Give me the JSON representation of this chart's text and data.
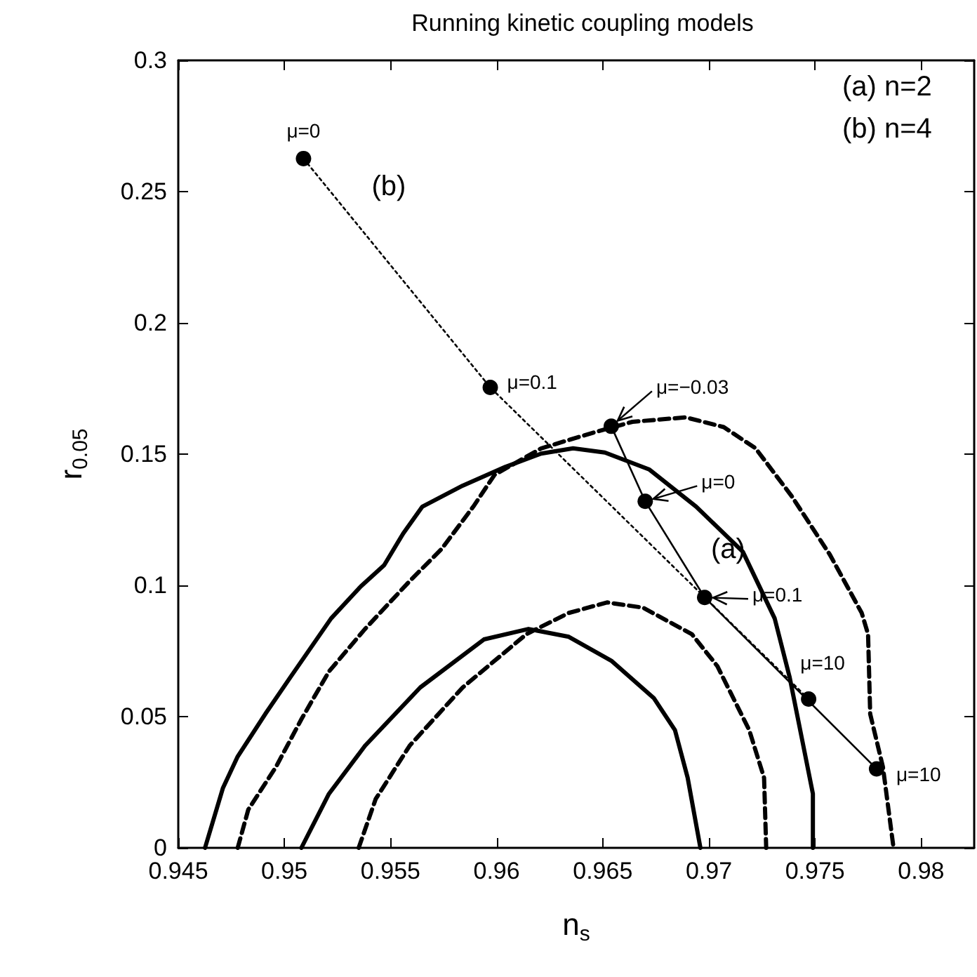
{
  "chart_data": {
    "type": "line",
    "title": "Running kinetic coupling models",
    "xlabel": "n$_{s}$",
    "ylabel": "r$_{0.05}$",
    "xlim": [
      0.945,
      0.9825
    ],
    "xticks": [
      0.945,
      0.95,
      0.955,
      0.96,
      0.965,
      0.97,
      0.975,
      0.98
    ],
    "ylim": [
      0,
      0.3
    ],
    "yticks": [
      0,
      0.05,
      0.1,
      0.15,
      0.2,
      0.25,
      0.3
    ],
    "grid": false,
    "legend": false,
    "series": [
      {
        "color": "#000000",
        "line_style": "solid",
        "marker": "none",
        "x": [
          0.94626,
          0.9471,
          0.9478,
          0.9491,
          0.9503,
          0.9522,
          0.9536,
          0.9547,
          0.9556,
          0.9565,
          0.9584,
          0.9604,
          0.9621,
          0.9636,
          0.9651,
          0.9672,
          0.9694,
          0.9716,
          0.9731,
          0.9738,
          0.9744,
          0.9749,
          0.9749
        ],
        "values": [
          0,
          0.0227,
          0.0348,
          0.051,
          0.0652,
          0.0874,
          0.0996,
          0.1077,
          0.1198,
          0.13,
          0.138,
          0.1451,
          0.1502,
          0.1522,
          0.1506,
          0.1441,
          0.13,
          0.1128,
          0.0874,
          0.0652,
          0.0409,
          0.0206,
          0
        ]
      },
      {
        "color": "#000000",
        "line_style": "solid",
        "marker": "none",
        "x": [
          0.9508,
          0.9521,
          0.9538,
          0.9564,
          0.9594,
          0.9615,
          0.9634,
          0.9654,
          0.9674,
          0.9684,
          0.969,
          0.9696
        ],
        "values": [
          0,
          0.0206,
          0.0389,
          0.0611,
          0.0794,
          0.0834,
          0.0804,
          0.0713,
          0.0571,
          0.0449,
          0.0267,
          0
        ]
      },
      {
        "color": "#000000",
        "line_style": "dashed",
        "marker": "none",
        "x": [
          0.9478,
          0.9483,
          0.9496,
          0.9508,
          0.9521,
          0.9538,
          0.9559,
          0.9574,
          0.9589,
          0.9599,
          0.9621,
          0.9646,
          0.9664,
          0.9689,
          0.9707,
          0.9722,
          0.9739,
          0.9757,
          0.9772,
          0.9775,
          0.9776,
          0.9782,
          0.9787
        ],
        "values": [
          0,
          0.0146,
          0.0308,
          0.049,
          0.0672,
          0.0834,
          0.1016,
          0.1138,
          0.13,
          0.1421,
          0.1522,
          0.1583,
          0.1623,
          0.164,
          0.1603,
          0.1522,
          0.134,
          0.1117,
          0.0895,
          0.0814,
          0.051,
          0.0308,
          0
        ]
      },
      {
        "color": "#000000",
        "line_style": "dashed",
        "marker": "none",
        "x": [
          0.9535,
          0.9543,
          0.9559,
          0.9584,
          0.9614,
          0.9634,
          0.9652,
          0.9669,
          0.9692,
          0.9704,
          0.9719,
          0.9726,
          0.9727
        ],
        "values": [
          0,
          0.0186,
          0.0389,
          0.0611,
          0.0814,
          0.0895,
          0.0935,
          0.0915,
          0.0814,
          0.0692,
          0.0449,
          0.0267,
          0
        ]
      },
      {
        "name": "(a)",
        "color": "#000000",
        "line_style": "solid",
        "marker": "circle",
        "x": [
          0.9654,
          0.967,
          0.9698,
          0.9779
        ],
        "values": [
          0.1606,
          0.132,
          0.0954,
          0.0301
        ]
      },
      {
        "name": "(b)",
        "color": "#000000",
        "line_style": "dotted",
        "marker": "circle",
        "x": [
          0.9509,
          0.9597,
          0.9747
        ],
        "values": [
          0.2626,
          0.1754,
          0.0567
        ]
      }
    ],
    "annotations": [
      {
        "text": "μ=0",
        "x": 0.9509,
        "y": 0.2626
      },
      {
        "text": "μ=0.1",
        "x": 0.9597,
        "y": 0.1754
      },
      {
        "text": "μ=−0.03",
        "x": 0.9654,
        "y": 0.1606
      },
      {
        "text": "μ=0",
        "x": 0.967,
        "y": 0.132
      },
      {
        "text": "μ=0.1",
        "x": 0.9698,
        "y": 0.0954
      },
      {
        "text": "μ=10",
        "x": 0.9747,
        "y": 0.0567
      },
      {
        "text": "μ=10",
        "x": 0.9779,
        "y": 0.0301
      },
      "(a) n=2",
      "(b) n=4"
    ]
  }
}
